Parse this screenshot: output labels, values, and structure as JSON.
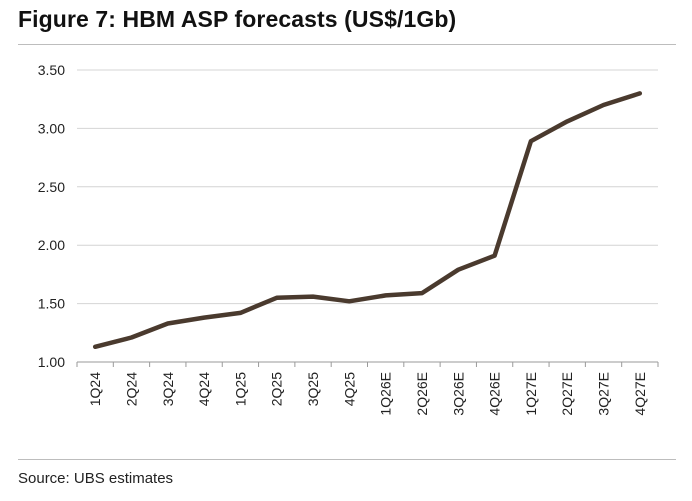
{
  "title": "Figure 7: HBM ASP forecasts (US$/1Gb)",
  "source": "Source: UBS estimates",
  "chart_data": {
    "type": "line",
    "title": "Figure 7: HBM ASP forecasts (US$/1Gb)",
    "xlabel": "",
    "ylabel": "",
    "categories": [
      "1Q24",
      "2Q24",
      "3Q24",
      "4Q24",
      "1Q25",
      "2Q25",
      "3Q25",
      "4Q25",
      "1Q26E",
      "2Q26E",
      "3Q26E",
      "4Q26E",
      "1Q27E",
      "2Q27E",
      "3Q27E",
      "4Q27E"
    ],
    "series": [
      {
        "values": [
          1.13,
          1.21,
          1.33,
          1.38,
          1.42,
          1.55,
          1.56,
          1.52,
          1.57,
          1.59,
          1.79,
          1.91,
          2.89,
          3.06,
          3.2,
          3.3
        ]
      }
    ],
    "ylim": [
      1.0,
      3.5
    ],
    "yticks": [
      "1.00",
      "1.50",
      "2.00",
      "2.50",
      "3.00",
      "3.50"
    ],
    "grid": true,
    "line_color": "#4a3a2e",
    "grid_color": "#d4d4d4"
  }
}
